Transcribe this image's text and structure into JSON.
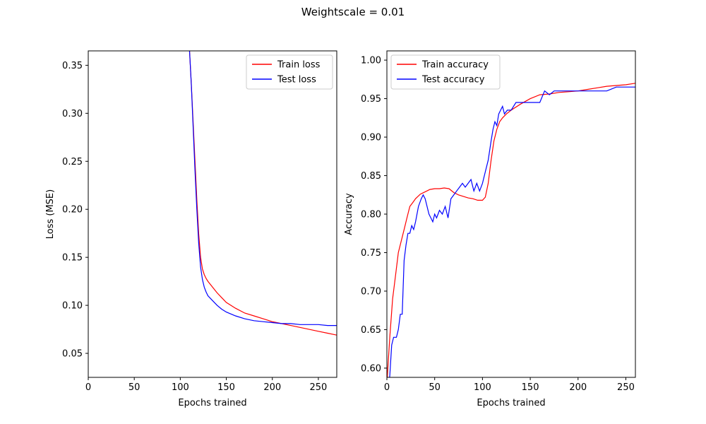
{
  "figure": {
    "suptitle": "Weightscale = 0.01"
  },
  "chart_data": [
    {
      "type": "line",
      "xlabel": "Epochs trained",
      "ylabel": "Loss (MSE)",
      "xlim": [
        0,
        270
      ],
      "ylim": [
        0.025,
        0.365
      ],
      "xticks": [
        0,
        50,
        100,
        150,
        200,
        250
      ],
      "yticks": [
        0.05,
        0.1,
        0.15,
        0.2,
        0.25,
        0.3,
        0.35
      ],
      "ytick_labels": [
        "0.05",
        "0.10",
        "0.15",
        "0.20",
        "0.25",
        "0.30",
        "0.35"
      ],
      "legend_position": "upper-right",
      "grid": false,
      "series": [
        {
          "name": "Train loss",
          "color": "#ff0000",
          "x": [
            110,
            112,
            114,
            116,
            118,
            120,
            122,
            124,
            126,
            128,
            130,
            135,
            140,
            145,
            150,
            160,
            170,
            180,
            190,
            200,
            210,
            220,
            230,
            240,
            250,
            260,
            270
          ],
          "y": [
            0.366,
            0.33,
            0.29,
            0.25,
            0.21,
            0.175,
            0.15,
            0.138,
            0.132,
            0.128,
            0.125,
            0.119,
            0.113,
            0.108,
            0.103,
            0.097,
            0.092,
            0.089,
            0.086,
            0.083,
            0.081,
            0.079,
            0.077,
            0.075,
            0.073,
            0.071,
            0.069
          ]
        },
        {
          "name": "Test loss",
          "color": "#0000ff",
          "x": [
            110,
            112,
            114,
            116,
            118,
            120,
            122,
            124,
            126,
            128,
            130,
            135,
            140,
            145,
            150,
            160,
            170,
            180,
            190,
            200,
            210,
            220,
            230,
            240,
            250,
            260,
            270
          ],
          "y": [
            0.366,
            0.33,
            0.285,
            0.24,
            0.2,
            0.165,
            0.14,
            0.127,
            0.119,
            0.114,
            0.11,
            0.105,
            0.1,
            0.096,
            0.093,
            0.089,
            0.086,
            0.084,
            0.083,
            0.082,
            0.081,
            0.081,
            0.08,
            0.08,
            0.08,
            0.079,
            0.079
          ]
        }
      ]
    },
    {
      "type": "line",
      "xlabel": "Epochs trained",
      "ylabel": "Accuracy",
      "xlim": [
        0,
        260
      ],
      "ylim": [
        0.588,
        1.012
      ],
      "xticks": [
        0,
        50,
        100,
        150,
        200,
        250
      ],
      "yticks": [
        0.6,
        0.65,
        0.7,
        0.75,
        0.8,
        0.85,
        0.9,
        0.95,
        1.0
      ],
      "ytick_labels": [
        "0.60",
        "0.65",
        "0.70",
        "0.75",
        "0.80",
        "0.85",
        "0.90",
        "0.95",
        "1.00"
      ],
      "legend_position": "upper-left",
      "grid": false,
      "series": [
        {
          "name": "Train accuracy",
          "color": "#ff0000",
          "x": [
            0,
            3,
            6,
            9,
            12,
            15,
            18,
            21,
            24,
            27,
            30,
            35,
            40,
            45,
            50,
            55,
            60,
            65,
            70,
            75,
            80,
            85,
            90,
            95,
            100,
            103,
            106,
            109,
            112,
            115,
            118,
            121,
            125,
            130,
            140,
            150,
            160,
            170,
            180,
            190,
            200,
            210,
            220,
            230,
            240,
            250,
            260
          ],
          "y": [
            0.58,
            0.64,
            0.69,
            0.72,
            0.75,
            0.765,
            0.78,
            0.795,
            0.81,
            0.815,
            0.82,
            0.826,
            0.829,
            0.832,
            0.833,
            0.833,
            0.834,
            0.833,
            0.828,
            0.825,
            0.823,
            0.821,
            0.82,
            0.818,
            0.818,
            0.822,
            0.84,
            0.87,
            0.895,
            0.91,
            0.92,
            0.925,
            0.93,
            0.935,
            0.943,
            0.95,
            0.955,
            0.956,
            0.958,
            0.959,
            0.96,
            0.962,
            0.964,
            0.966,
            0.967,
            0.968,
            0.97
          ]
        },
        {
          "name": "Test accuracy",
          "color": "#0000ff",
          "x": [
            0,
            3,
            5,
            7,
            10,
            12,
            14,
            16,
            18,
            20,
            22,
            24,
            26,
            28,
            30,
            33,
            36,
            38,
            40,
            42,
            44,
            46,
            48,
            50,
            52,
            55,
            58,
            61,
            64,
            67,
            70,
            73,
            76,
            79,
            82,
            85,
            88,
            91,
            94,
            97,
            100,
            103,
            106,
            109,
            111,
            113,
            115,
            117,
            119,
            121,
            123,
            126,
            130,
            135,
            140,
            145,
            150,
            155,
            160,
            165,
            170,
            175,
            180,
            190,
            200,
            210,
            220,
            230,
            240,
            250,
            260
          ],
          "y": [
            0.56,
            0.59,
            0.63,
            0.64,
            0.64,
            0.65,
            0.67,
            0.67,
            0.74,
            0.76,
            0.775,
            0.775,
            0.785,
            0.78,
            0.79,
            0.81,
            0.82,
            0.825,
            0.82,
            0.81,
            0.8,
            0.795,
            0.79,
            0.8,
            0.795,
            0.805,
            0.8,
            0.81,
            0.795,
            0.82,
            0.825,
            0.83,
            0.835,
            0.84,
            0.835,
            0.84,
            0.845,
            0.83,
            0.84,
            0.83,
            0.84,
            0.855,
            0.87,
            0.895,
            0.91,
            0.92,
            0.915,
            0.93,
            0.935,
            0.94,
            0.93,
            0.935,
            0.935,
            0.945,
            0.945,
            0.945,
            0.945,
            0.945,
            0.945,
            0.96,
            0.955,
            0.96,
            0.96,
            0.96,
            0.96,
            0.96,
            0.96,
            0.96,
            0.965,
            0.965,
            0.965
          ]
        }
      ]
    }
  ]
}
